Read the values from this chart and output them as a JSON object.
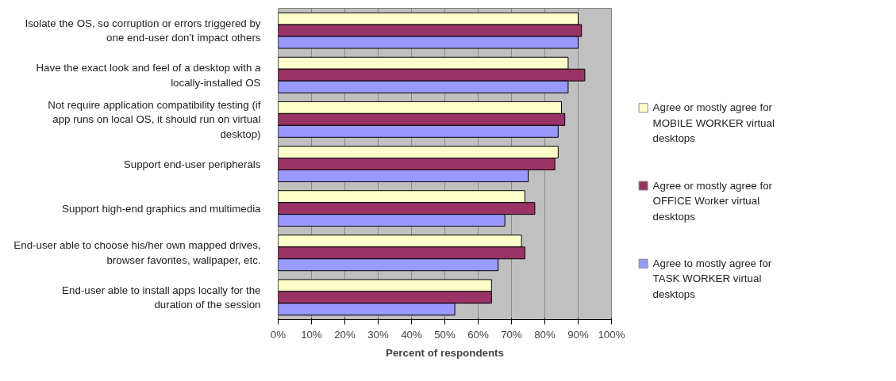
{
  "chart_data": {
    "type": "bar",
    "orientation": "horizontal",
    "xlabel": "Percent of respondents",
    "categories": [
      "Isolate the OS, so corruption or errors triggered by one end-user don't impact others",
      "Have the exact look and feel of a desktop with a locally-installed OS",
      "Not require application compatibility testing (if app runs on local OS, it should run on virtual desktop)",
      "Support end-user peripherals",
      "Support high-end graphics and multimedia",
      "End-user able to choose his/her own mapped drives, browser favorites, wallpaper, etc.",
      "End-user able to install apps locally for the duration of the session"
    ],
    "series": [
      {
        "name": "Agree or mostly agree for MOBILE WORKER virtual desktops",
        "color": "#ffffcc",
        "values": [
          90,
          87,
          85,
          84,
          74,
          73,
          64
        ]
      },
      {
        "name": "Agree or mostly agree for OFFICE Worker virtual desktops",
        "color": "#993366",
        "values": [
          91,
          92,
          86,
          83,
          77,
          74,
          64
        ]
      },
      {
        "name": "Agree to mostly agree for TASK WORKER virtual desktops",
        "color": "#9999ff",
        "values": [
          90,
          87,
          84,
          75,
          68,
          66,
          53
        ]
      }
    ],
    "xlim": [
      0,
      100
    ],
    "xticks": [
      {
        "value": 0,
        "label": "0%"
      },
      {
        "value": 10,
        "label": "10%"
      },
      {
        "value": 20,
        "label": "20%"
      },
      {
        "value": 30,
        "label": "30%"
      },
      {
        "value": 40,
        "label": "40%"
      },
      {
        "value": 50,
        "label": "50%"
      },
      {
        "value": 60,
        "label": "60%"
      },
      {
        "value": 70,
        "label": "70%"
      },
      {
        "value": 80,
        "label": "80%"
      },
      {
        "value": 90,
        "label": "90%"
      },
      {
        "value": 100,
        "label": "100%"
      }
    ],
    "grid": "x",
    "legend": "right"
  }
}
